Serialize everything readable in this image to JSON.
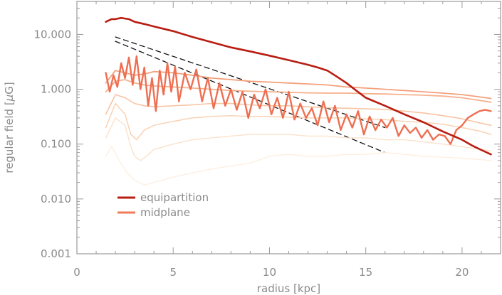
{
  "chart_data": {
    "type": "line",
    "xlabel": "radius [kpc]",
    "ylabel_prefix": "regular field [",
    "ylabel_mu": "μ",
    "ylabel_suffix": "G]",
    "xlim": [
      0,
      22
    ],
    "ylim": [
      0.001,
      40
    ],
    "yscale": "log",
    "grid": false,
    "legend_position": "lower-left",
    "xticks": [
      0,
      5,
      10,
      15,
      20
    ],
    "xtick_labels": [
      "0",
      "5",
      "10",
      "15",
      "20"
    ],
    "yticks": [
      0.001,
      0.01,
      0.1,
      1,
      10
    ],
    "ytick_labels": [
      "0.001",
      "0.010",
      "0.100",
      "1.000",
      "10.000"
    ],
    "legend": [
      {
        "label": "equipartition",
        "color": "#b81d12"
      },
      {
        "label": "midplane",
        "color": "#ee7b5a"
      }
    ],
    "series": [
      {
        "name": "equipartition",
        "color": "#b81d12",
        "width": 2.6,
        "x": [
          1.5,
          1.8,
          2.0,
          2.3,
          2.5,
          2.7,
          3.0,
          3.5,
          4.0,
          5.0,
          6.0,
          7.0,
          8.0,
          9.0,
          10.0,
          11.0,
          12.0,
          12.5,
          13.0,
          13.5,
          14.0,
          14.5,
          15.0,
          16.0,
          17.0,
          18.0,
          19.0,
          20.0,
          20.5,
          21.0,
          21.5
        ],
        "y": [
          17,
          19,
          19,
          20,
          19.5,
          19,
          17,
          15.5,
          14,
          11.5,
          9,
          7.2,
          5.8,
          4.9,
          4.1,
          3.4,
          2.8,
          2.5,
          2.2,
          1.7,
          1.3,
          0.95,
          0.7,
          0.5,
          0.35,
          0.25,
          0.17,
          0.12,
          0.095,
          0.078,
          0.065
        ]
      },
      {
        "name": "midplane",
        "color": "#ee6f52",
        "width": 2.4,
        "x": [
          1.5,
          1.7,
          1.9,
          2.1,
          2.3,
          2.5,
          2.7,
          2.9,
          3.1,
          3.3,
          3.5,
          3.7,
          3.9,
          4.1,
          4.3,
          4.5,
          4.7,
          4.9,
          5.1,
          5.3,
          5.6,
          5.9,
          6.2,
          6.5,
          6.8,
          7.1,
          7.4,
          7.7,
          8.0,
          8.3,
          8.6,
          8.9,
          9.2,
          9.5,
          9.8,
          10.1,
          10.4,
          10.7,
          11.0,
          11.3,
          11.6,
          11.9,
          12.2,
          12.5,
          12.8,
          13.1,
          13.4,
          13.7,
          14.0,
          14.3,
          14.6,
          14.9,
          15.2,
          15.5,
          15.8,
          16.1,
          16.4,
          16.7,
          17.0,
          17.3,
          17.6,
          17.9,
          18.2,
          18.5,
          18.8,
          19.1,
          19.4,
          19.7,
          20.0,
          20.3,
          20.6,
          20.9,
          21.2,
          21.5
        ],
        "y": [
          2.0,
          0.9,
          1.8,
          1.1,
          3.0,
          1.6,
          3.8,
          1.2,
          4.0,
          1.0,
          2.5,
          0.5,
          1.6,
          0.4,
          2.2,
          0.8,
          3.0,
          0.9,
          2.6,
          0.6,
          2.0,
          1.0,
          2.3,
          0.6,
          1.6,
          0.45,
          1.3,
          0.5,
          1.0,
          0.42,
          0.9,
          0.3,
          0.8,
          0.45,
          1.0,
          0.35,
          0.7,
          0.3,
          0.9,
          0.28,
          0.55,
          0.3,
          0.45,
          0.22,
          0.6,
          0.25,
          0.5,
          0.18,
          0.35,
          0.2,
          0.4,
          0.15,
          0.32,
          0.18,
          0.28,
          0.2,
          0.3,
          0.14,
          0.22,
          0.16,
          0.2,
          0.13,
          0.18,
          0.12,
          0.15,
          0.14,
          0.1,
          0.18,
          0.22,
          0.3,
          0.35,
          0.4,
          0.42,
          0.4
        ]
      },
      {
        "name": "",
        "color": "#f4a07c",
        "width": 1.8,
        "x": [
          1.5,
          2.0,
          2.5,
          3.0,
          3.5,
          4.0,
          5.0,
          6.0,
          7.0,
          8.0,
          9.0,
          10.0,
          11.0,
          12.0,
          13.0,
          14.0,
          15.0,
          16.0,
          17.0,
          18.0,
          19.0,
          20.0,
          21.0,
          21.5
        ],
        "y": [
          1.3,
          2.2,
          2.0,
          1.8,
          1.9,
          2.1,
          2.0,
          1.8,
          1.6,
          1.5,
          1.4,
          1.35,
          1.3,
          1.25,
          1.2,
          1.1,
          1.05,
          1.0,
          0.95,
          0.9,
          0.85,
          0.8,
          0.72,
          0.68
        ]
      },
      {
        "name": "",
        "color": "#f6b08c",
        "width": 1.8,
        "x": [
          1.5,
          2.0,
          2.5,
          3.0,
          3.5,
          4.0,
          5.0,
          6.0,
          7.0,
          8.0,
          9.0,
          10.0,
          11.0,
          12.0,
          13.0,
          14.0,
          15.0,
          16.0,
          17.0,
          18.0,
          19.0,
          20.0,
          21.0,
          21.5
        ],
        "y": [
          0.9,
          1.4,
          1.5,
          1.3,
          1.2,
          1.15,
          1.1,
          1.05,
          1.0,
          0.95,
          0.92,
          0.9,
          0.88,
          0.86,
          0.85,
          0.85,
          0.83,
          0.82,
          0.8,
          0.78,
          0.75,
          0.7,
          0.62,
          0.58
        ]
      },
      {
        "name": "",
        "color": "#f8c4a2",
        "width": 1.6,
        "x": [
          1.5,
          2.0,
          2.5,
          3.0,
          3.5,
          4.0,
          5.0,
          6.0,
          7.0,
          8.0,
          9.0,
          10.0,
          11.0,
          12.0,
          13.0,
          14.0,
          15.0,
          16.0,
          17.0,
          18.0,
          19.0,
          20.0,
          21.0,
          21.5
        ],
        "y": [
          0.35,
          0.8,
          0.7,
          0.55,
          0.5,
          0.48,
          0.5,
          0.52,
          0.55,
          0.55,
          0.52,
          0.5,
          0.5,
          0.48,
          0.46,
          0.45,
          0.44,
          0.43,
          0.4,
          0.37,
          0.33,
          0.29,
          0.24,
          0.22
        ]
      },
      {
        "name": "",
        "color": "#f9d2b4",
        "width": 1.5,
        "x": [
          1.5,
          2.0,
          2.5,
          2.8,
          3.1,
          3.5,
          4.0,
          5.0,
          6.0,
          7.0,
          8.0,
          9.0,
          10.0,
          11.0,
          12.0,
          13.0,
          14.0,
          15.0,
          16.0,
          17.0,
          18.0,
          19.0,
          20.0,
          21.0,
          21.5
        ],
        "y": [
          0.2,
          0.55,
          0.35,
          0.15,
          0.12,
          0.18,
          0.22,
          0.26,
          0.3,
          0.32,
          0.33,
          0.32,
          0.32,
          0.31,
          0.3,
          0.3,
          0.3,
          0.29,
          0.28,
          0.26,
          0.25,
          0.23,
          0.2,
          0.17,
          0.15
        ]
      },
      {
        "name": "",
        "color": "#fbe2cc",
        "width": 1.4,
        "x": [
          1.5,
          2.0,
          2.5,
          2.8,
          3.0,
          3.3,
          3.6,
          4.0,
          5.0,
          6.0,
          7.0,
          8.0,
          9.0,
          10.0,
          11.0,
          12.0,
          13.0,
          14.0,
          15.0,
          16.0,
          17.0,
          18.0,
          19.0,
          20.0,
          21.0,
          21.5
        ],
        "y": [
          0.13,
          0.3,
          0.22,
          0.09,
          0.06,
          0.05,
          0.06,
          0.08,
          0.1,
          0.12,
          0.13,
          0.14,
          0.15,
          0.15,
          0.15,
          0.14,
          0.14,
          0.13,
          0.13,
          0.12,
          0.12,
          0.11,
          0.1,
          0.09,
          0.08,
          0.075
        ]
      },
      {
        "name": "",
        "color": "#fdeede",
        "width": 1.3,
        "x": [
          1.5,
          1.8,
          2.2,
          2.6,
          3.0,
          3.5,
          4.0,
          5.0,
          6.0,
          7.0,
          8.0,
          9.0,
          10.0,
          11.0,
          12.0,
          13.0,
          14.0,
          15.0,
          16.0,
          17.0,
          18.0,
          19.0,
          20.0,
          21.0,
          21.5
        ],
        "y": [
          0.06,
          0.09,
          0.05,
          0.03,
          0.022,
          0.018,
          0.02,
          0.025,
          0.03,
          0.035,
          0.04,
          0.045,
          0.06,
          0.065,
          0.06,
          0.06,
          0.065,
          0.065,
          0.07,
          0.065,
          0.06,
          0.058,
          0.055,
          0.052,
          0.05
        ]
      },
      {
        "name": "",
        "color": "#111111",
        "width": 1.3,
        "dash": "7,5",
        "x": [
          2.0,
          16.0
        ],
        "y": [
          9.0,
          0.2
        ]
      },
      {
        "name": "",
        "color": "#111111",
        "width": 1.3,
        "dash": "7,5",
        "x": [
          2.0,
          16.0
        ],
        "y": [
          7.5,
          0.07
        ]
      }
    ]
  }
}
